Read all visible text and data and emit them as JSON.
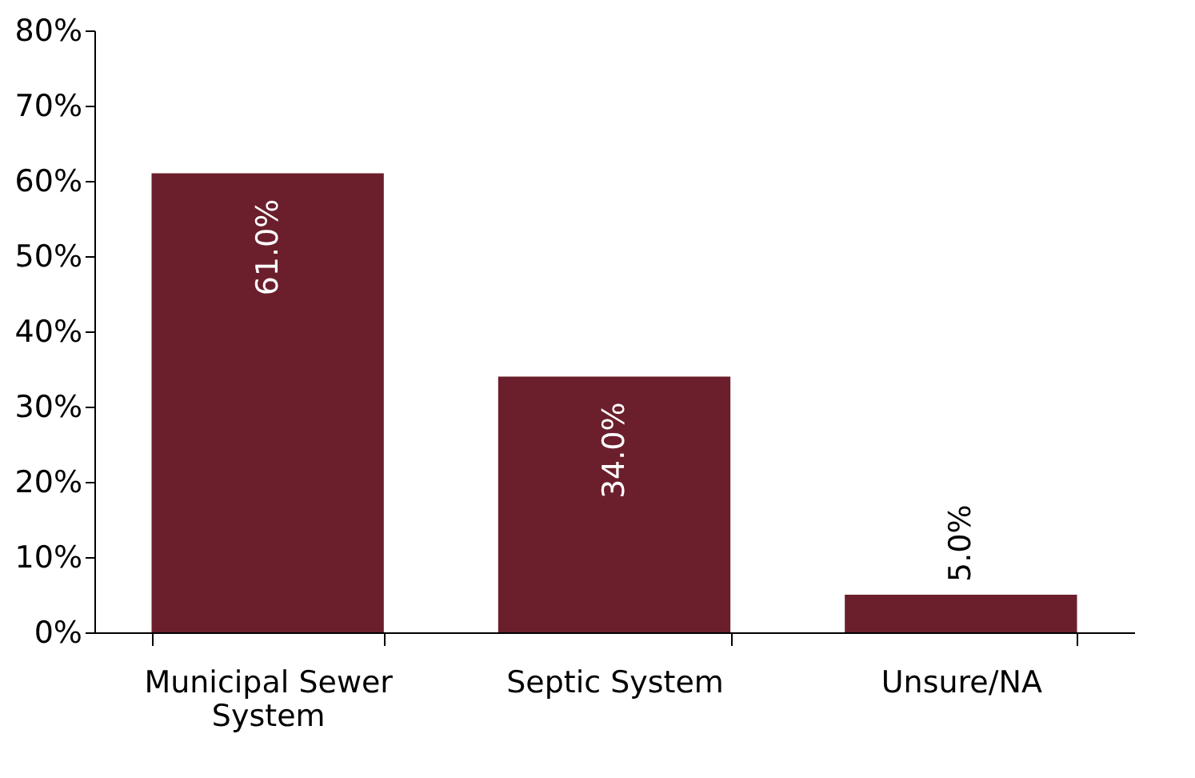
{
  "chart_data": {
    "type": "bar",
    "categories": [
      "Municipal Sewer System",
      "Septic System",
      "Unsure/NA"
    ],
    "values": [
      61.0,
      34.0,
      5.0
    ],
    "value_labels": [
      "61.0%",
      "34.0%",
      "5.0%"
    ],
    "color": "#6b1f2c",
    "ylim": [
      0,
      80
    ],
    "yticks": [
      {
        "value": 0,
        "label": "0%"
      },
      {
        "value": 10,
        "label": "10%"
      },
      {
        "value": 20,
        "label": "20%"
      },
      {
        "value": 30,
        "label": "30%"
      },
      {
        "value": 40,
        "label": "40%"
      },
      {
        "value": 50,
        "label": "50%"
      },
      {
        "value": 60,
        "label": "60%"
      },
      {
        "value": 70,
        "label": "70%"
      },
      {
        "value": 80,
        "label": "80%"
      }
    ],
    "grid": false
  }
}
